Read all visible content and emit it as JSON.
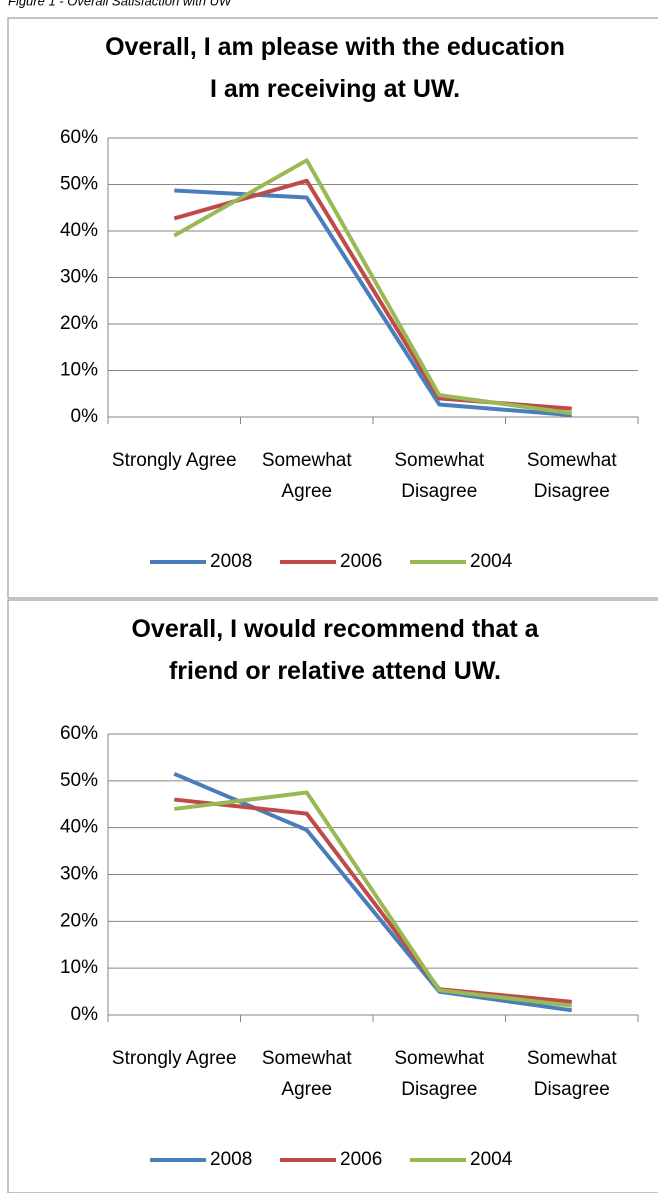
{
  "caption": "Figure 1 - Overall Satisfaction with UW",
  "chart_data": [
    {
      "type": "line",
      "title": "Overall, I am please with the education I am receiving at UW.",
      "categories": [
        "Strongly Agree",
        "Somewhat Agree",
        "Somewhat Disagree",
        "Somewhat Disagree"
      ],
      "series": [
        {
          "name": "2008",
          "color": "#4a7ebb",
          "values": [
            48.7,
            47.2,
            2.7,
            0.4
          ]
        },
        {
          "name": "2006",
          "color": "#be4b48",
          "values": [
            42.7,
            50.8,
            4.0,
            1.8
          ]
        },
        {
          "name": "2004",
          "color": "#98b954",
          "values": [
            39.0,
            55.2,
            4.7,
            0.8
          ]
        }
      ],
      "ylim": [
        0,
        60
      ],
      "yticks": [
        {
          "value": 0,
          "label": "0%"
        },
        {
          "value": 10,
          "label": "10%"
        },
        {
          "value": 20,
          "label": "20%"
        },
        {
          "value": 30,
          "label": "30%"
        },
        {
          "value": 40,
          "label": "40%"
        },
        {
          "value": 50,
          "label": "50%"
        },
        {
          "value": 60,
          "label": "60%"
        }
      ],
      "grid": true,
      "legend": "bottom"
    },
    {
      "type": "line",
      "title": "Overall, I would recommend that a friend or relative attend UW.",
      "categories": [
        "Strongly Agree",
        "Somewhat Agree",
        "Somewhat Disagree",
        "Somewhat Disagree"
      ],
      "series": [
        {
          "name": "2008",
          "color": "#4a7ebb",
          "values": [
            51.5,
            39.5,
            5.0,
            1.0
          ]
        },
        {
          "name": "2006",
          "color": "#be4b48",
          "values": [
            46.0,
            43.0,
            5.5,
            2.8
          ]
        },
        {
          "name": "2004",
          "color": "#98b954",
          "values": [
            44.0,
            47.5,
            5.3,
            2.0
          ]
        }
      ],
      "ylim": [
        0,
        60
      ],
      "yticks": [
        {
          "value": 0,
          "label": "0%"
        },
        {
          "value": 10,
          "label": "10%"
        },
        {
          "value": 20,
          "label": "20%"
        },
        {
          "value": 30,
          "label": "30%"
        },
        {
          "value": 40,
          "label": "40%"
        },
        {
          "value": 50,
          "label": "50%"
        },
        {
          "value": 60,
          "label": "60%"
        }
      ],
      "grid": true,
      "legend": "bottom"
    }
  ]
}
